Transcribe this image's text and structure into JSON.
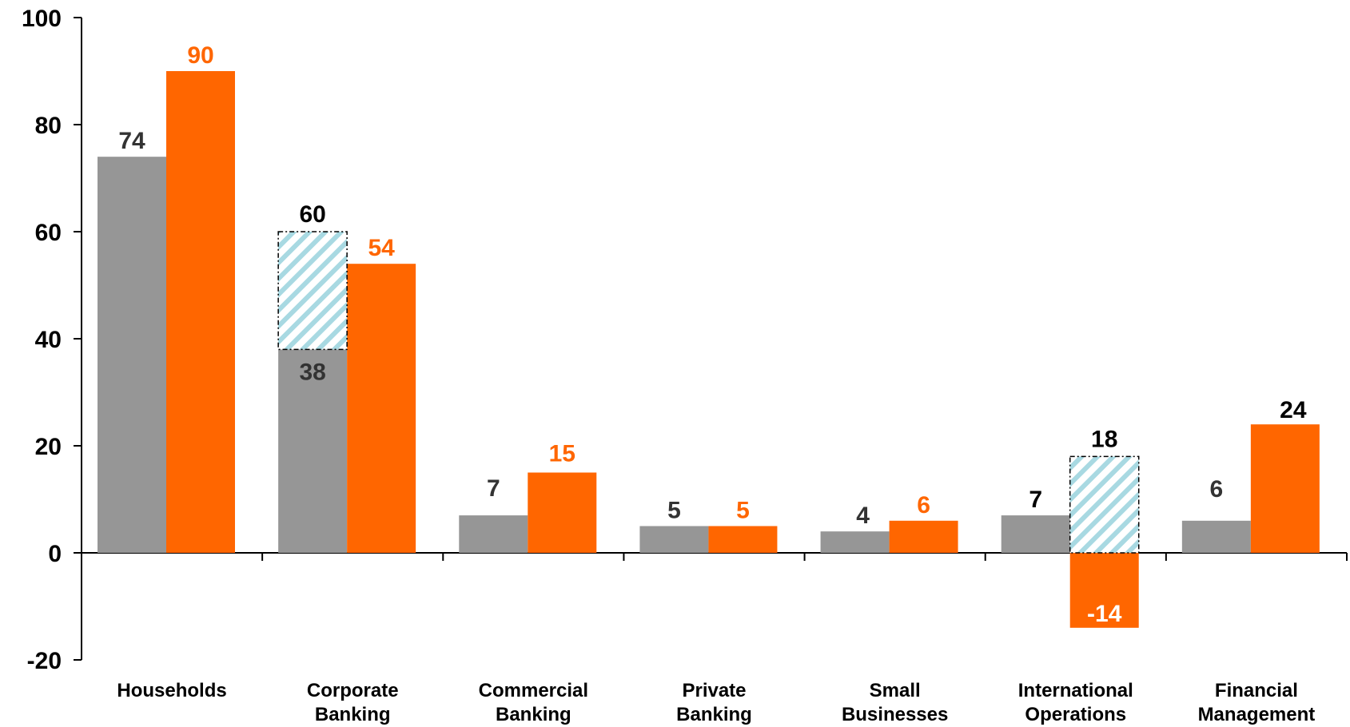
{
  "chart_data": {
    "type": "bar",
    "title": "",
    "xlabel": "",
    "ylabel": "",
    "ylim": [
      -20,
      100
    ],
    "yticks": [
      -20,
      0,
      20,
      40,
      60,
      80,
      100
    ],
    "grid": false,
    "legend": "none",
    "categories": [
      [
        "Households"
      ],
      [
        "Corporate",
        "Banking"
      ],
      [
        "Commercial",
        "Banking"
      ],
      [
        "Private",
        "Banking"
      ],
      [
        "Small",
        "Businesses"
      ],
      [
        "International",
        "Operations"
      ],
      [
        "Financial",
        "Management"
      ]
    ],
    "series": [
      {
        "color": "#969696",
        "label_color": "#333333",
        "values": [
          74,
          38,
          7,
          5,
          4,
          7,
          6
        ]
      },
      {
        "color": "#ff6600",
        "label_color": "#ff6600",
        "values": [
          90,
          54,
          15,
          5,
          6,
          -14,
          24
        ]
      }
    ],
    "adjusted": [
      {
        "category": 1,
        "series": 0,
        "from": 38,
        "to": 60,
        "label": "60"
      },
      {
        "category": 5,
        "series": 1,
        "from": 0,
        "to": 18,
        "label": "18"
      }
    ],
    "colors": {
      "axis": "#000000",
      "hatch_stroke": "#9ed3dc",
      "adjusted_label": "#000000",
      "white_label": "#ffffff",
      "dark_label": "#000000"
    }
  }
}
